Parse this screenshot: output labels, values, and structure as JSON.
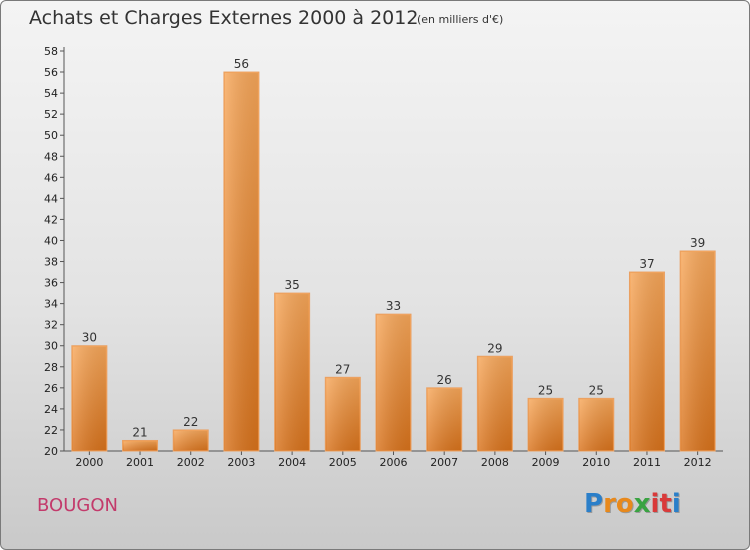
{
  "chart_data": {
    "type": "bar",
    "title": "Achats et Charges Externes 2000 à 2012",
    "subtitle": "(en milliers d'€)",
    "categories": [
      "2000",
      "2001",
      "2002",
      "2003",
      "2004",
      "2005",
      "2006",
      "2007",
      "2008",
      "2009",
      "2010",
      "2011",
      "2012"
    ],
    "values": [
      30,
      21,
      22,
      56,
      35,
      27,
      33,
      26,
      29,
      25,
      25,
      37,
      39
    ],
    "ylim": [
      20,
      58
    ],
    "yticks": [
      20,
      22,
      24,
      26,
      28,
      30,
      32,
      34,
      36,
      38,
      40,
      42,
      44,
      46,
      48,
      50,
      52,
      54,
      56,
      58
    ],
    "grid": false,
    "legend": "none",
    "bar_color": "#f0963a"
  },
  "footer": {
    "place": "BOUGON",
    "logo_letters": [
      "P",
      "r",
      "o",
      "x",
      "i",
      "t",
      "i"
    ],
    "logo_colors": [
      "#2b7fc9",
      "#e8891c",
      "#e8891c",
      "#3aa342",
      "#d93a3a",
      "#d93a3a",
      "#2b7fc9"
    ]
  }
}
